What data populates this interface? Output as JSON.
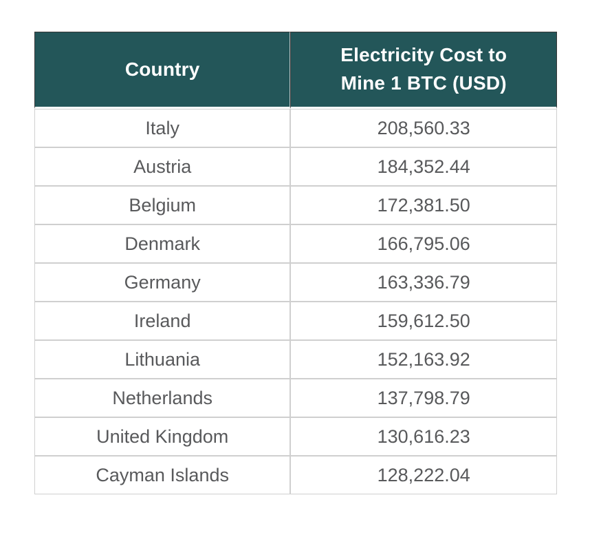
{
  "table": {
    "header": {
      "country_label": "Country",
      "cost_label": "Electricity Cost to\nMine 1 BTC (USD)"
    },
    "rows": [
      {
        "country": "Italy",
        "cost": "208,560.33"
      },
      {
        "country": "Austria",
        "cost": "184,352.44"
      },
      {
        "country": "Belgium",
        "cost": "172,381.50"
      },
      {
        "country": "Denmark",
        "cost": "166,795.06"
      },
      {
        "country": "Germany",
        "cost": "163,336.79"
      },
      {
        "country": "Ireland",
        "cost": "159,612.50"
      },
      {
        "country": "Lithuania",
        "cost": "152,163.92"
      },
      {
        "country": "Netherlands",
        "cost": "137,798.79"
      },
      {
        "country": "United Kingdom",
        "cost": "130,616.23"
      },
      {
        "country": "Cayman Islands",
        "cost": "128,222.04"
      }
    ]
  },
  "colors": {
    "header_bg": "#235659",
    "header_text": "#ffffff",
    "header_border": "#363636",
    "body_text": "#58595b",
    "body_border": "#cfcfcf",
    "page_bg": "#ffffff"
  },
  "chart_data": {
    "type": "table",
    "title": "Electricity Cost to Mine 1 BTC by Country (USD)",
    "columns": [
      "Country",
      "Electricity Cost to Mine 1 BTC (USD)"
    ],
    "rows": [
      [
        "Italy",
        208560.33
      ],
      [
        "Austria",
        184352.44
      ],
      [
        "Belgium",
        172381.5
      ],
      [
        "Denmark",
        166795.06
      ],
      [
        "Germany",
        163336.79
      ],
      [
        "Ireland",
        159612.5
      ],
      [
        "Lithuania",
        152163.92
      ],
      [
        "Netherlands",
        137798.79
      ],
      [
        "United Kingdom",
        130616.23
      ],
      [
        "Cayman Islands",
        128222.04
      ]
    ]
  }
}
